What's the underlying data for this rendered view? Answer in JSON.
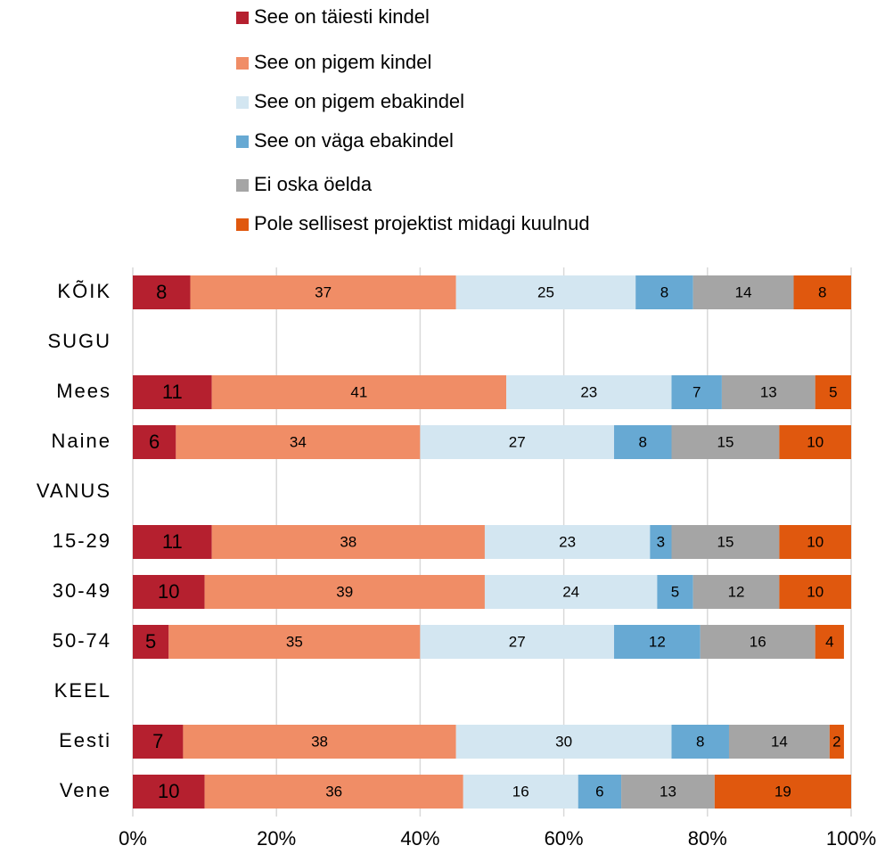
{
  "chart_data": {
    "type": "stacked_barh",
    "categories": [
      "KÕIK",
      "SUGU",
      "Mees",
      "Naine",
      "VANUS",
      "15-29",
      "30-49",
      "50-74",
      "KEEL",
      "Eesti",
      "Vene"
    ],
    "series": [
      {
        "name": "See on täiesti kindel",
        "color": "#b5202f",
        "values": [
          8,
          null,
          11,
          6,
          null,
          11,
          10,
          5,
          null,
          7,
          10
        ]
      },
      {
        "name": "See on pigem kindel",
        "color": "#f08d66",
        "values": [
          37,
          null,
          41,
          34,
          null,
          38,
          39,
          35,
          null,
          38,
          36
        ]
      },
      {
        "name": "See on pigem ebakindel",
        "color": "#d3e6f1",
        "values": [
          25,
          null,
          23,
          27,
          null,
          23,
          24,
          27,
          null,
          30,
          16
        ]
      },
      {
        "name": "See on väga ebakindel",
        "color": "#67a9d3",
        "values": [
          8,
          null,
          7,
          8,
          null,
          3,
          5,
          12,
          null,
          8,
          6
        ]
      },
      {
        "name": "Ei oska öelda",
        "color": "#a5a5a5",
        "values": [
          14,
          null,
          13,
          15,
          null,
          15,
          12,
          16,
          null,
          14,
          13
        ]
      },
      {
        "name": "Pole sellisest projektist midagi kuulnud",
        "color": "#e0580e",
        "values": [
          8,
          null,
          5,
          10,
          null,
          10,
          10,
          4,
          null,
          2,
          19
        ]
      }
    ],
    "xlim": [
      0,
      100
    ],
    "xticks": [
      {
        "value": 0,
        "label": "0%"
      },
      {
        "value": 20,
        "label": "20%"
      },
      {
        "value": 40,
        "label": "40%"
      },
      {
        "value": 60,
        "label": "60%"
      },
      {
        "value": 80,
        "label": "80%"
      },
      {
        "value": 100,
        "label": "100%"
      }
    ],
    "grid": true
  }
}
